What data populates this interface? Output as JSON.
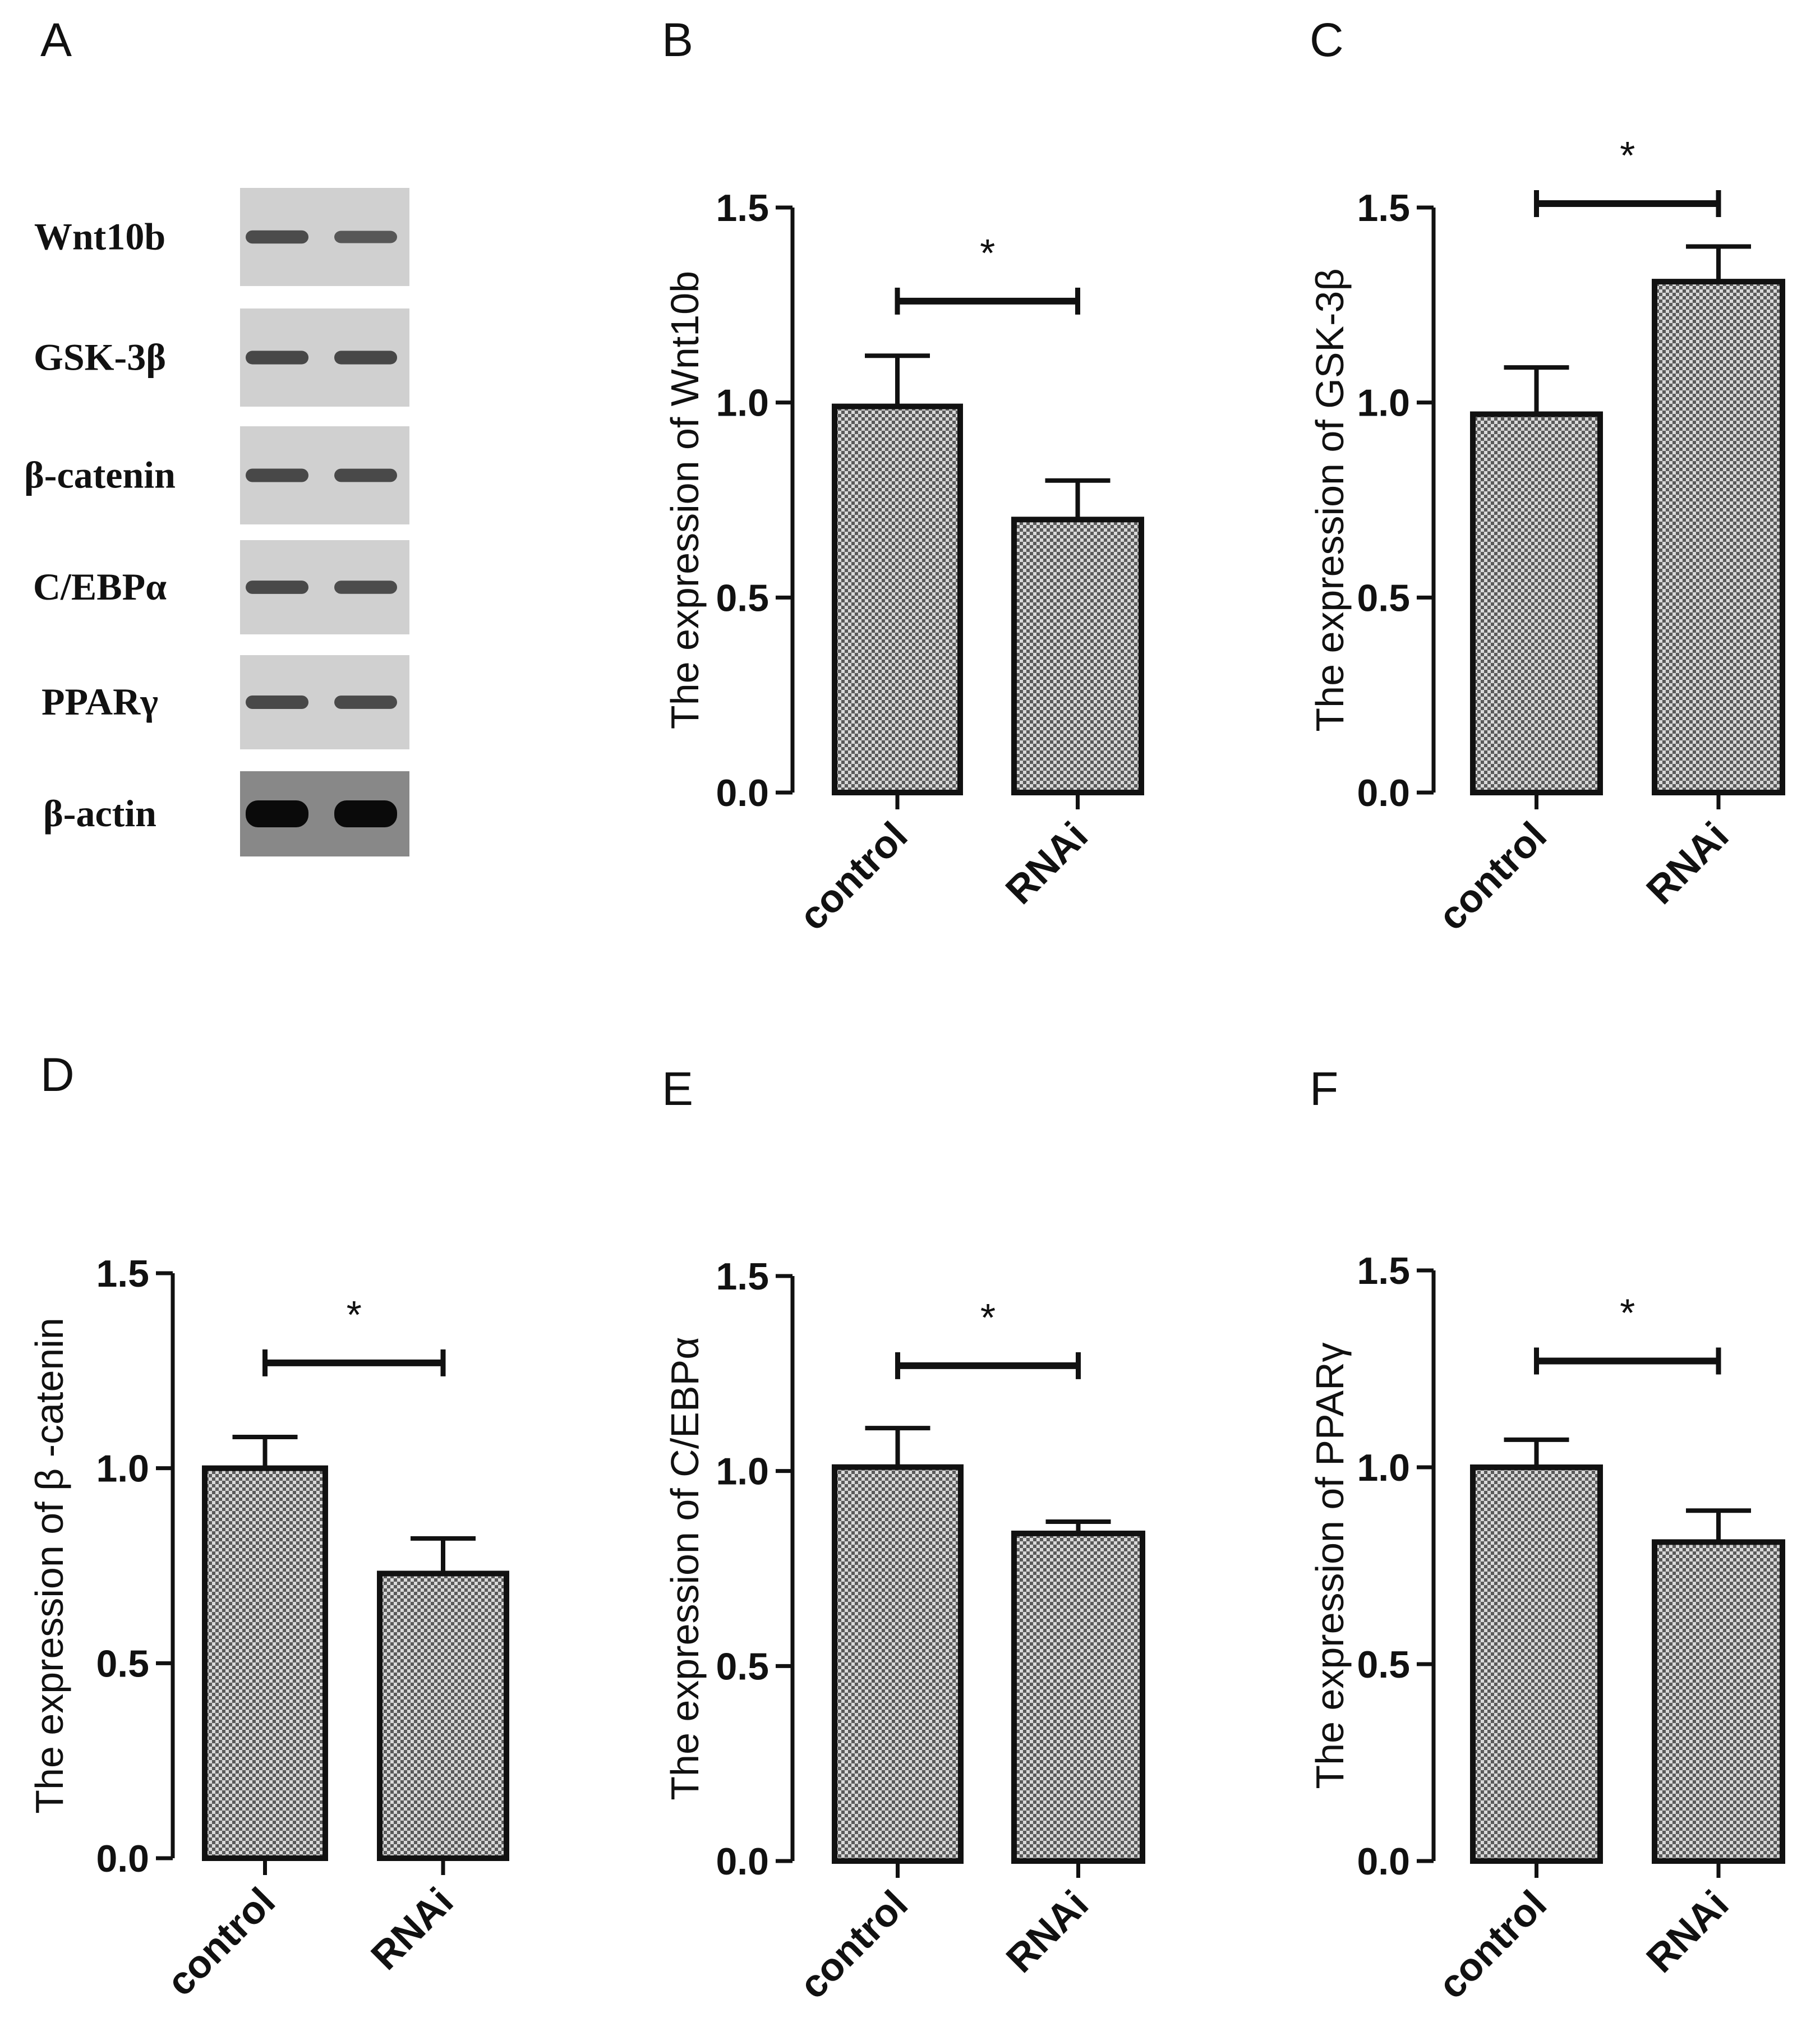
{
  "panel_a": {
    "letter": "A",
    "rows": [
      {
        "protein": "Wnt10b",
        "band_intensity": [
          0.55,
          0.4
        ]
      },
      {
        "protein": "GSK-3β",
        "band_intensity": [
          0.62,
          0.62
        ]
      },
      {
        "protein": "β-catenin",
        "band_intensity": [
          0.6,
          0.58
        ]
      },
      {
        "protein": "C/EBPα",
        "band_intensity": [
          0.58,
          0.55
        ]
      },
      {
        "protein": "PPARγ",
        "band_intensity": [
          0.6,
          0.57
        ]
      },
      {
        "protein": "β-actin",
        "band_intensity": [
          1.0,
          1.0
        ]
      }
    ]
  },
  "colors": {
    "bar_fill": "#9a9a9a",
    "bar_stroke": "#111111",
    "axis": "#111111",
    "blot_background": "#d0d0d0",
    "actin_background": "#888888",
    "band": "#2a2a2a"
  },
  "chart_data": [
    {
      "panel": "B",
      "type": "bar",
      "ylabel": "The expression of Wnt10b",
      "categories": [
        "control",
        "RNAi"
      ],
      "values": [
        0.99,
        0.7
      ],
      "errors": [
        0.13,
        0.1
      ],
      "ylim": [
        0,
        1.5
      ],
      "ticks": [
        "0.0",
        "0.5",
        "1.0",
        "1.5"
      ],
      "significance": {
        "label": "*",
        "bracket_y": 1.26
      }
    },
    {
      "panel": "C",
      "type": "bar",
      "ylabel": "The expression of GSK-3β",
      "categories": [
        "control",
        "RNAi"
      ],
      "values": [
        0.97,
        1.31
      ],
      "errors": [
        0.12,
        0.09
      ],
      "ylim": [
        0,
        1.5
      ],
      "ticks": [
        "0.0",
        "0.5",
        "1.0",
        "1.5"
      ],
      "significance": {
        "label": "*",
        "bracket_y": 1.51
      }
    },
    {
      "panel": "D",
      "type": "bar",
      "ylabel": "The expression of β -catenin",
      "categories": [
        "control",
        "RNAi"
      ],
      "values": [
        1.0,
        0.73
      ],
      "errors": [
        0.08,
        0.09
      ],
      "ylim": [
        0,
        1.5
      ],
      "ticks": [
        "0.0",
        "0.5",
        "1.0",
        "1.5"
      ],
      "significance": {
        "label": "*",
        "bracket_y": 1.27
      }
    },
    {
      "panel": "E",
      "type": "bar",
      "ylabel": "The expression of C/EBPα",
      "categories": [
        "control",
        "RNAi"
      ],
      "values": [
        1.01,
        0.84
      ],
      "errors": [
        0.1,
        0.03
      ],
      "ylim": [
        0,
        1.5
      ],
      "ticks": [
        "0.0",
        "0.5",
        "1.0",
        "1.5"
      ],
      "significance": {
        "label": "*",
        "bracket_y": 1.27
      }
    },
    {
      "panel": "F",
      "type": "bar",
      "ylabel": "The expression of PPARγ",
      "categories": [
        "control",
        "RNAi"
      ],
      "values": [
        1.0,
        0.81
      ],
      "errors": [
        0.07,
        0.08
      ],
      "ylim": [
        0,
        1.5
      ],
      "ticks": [
        "0.0",
        "0.5",
        "1.0",
        "1.5"
      ],
      "significance": {
        "label": "*",
        "bracket_y": 1.27
      }
    }
  ]
}
